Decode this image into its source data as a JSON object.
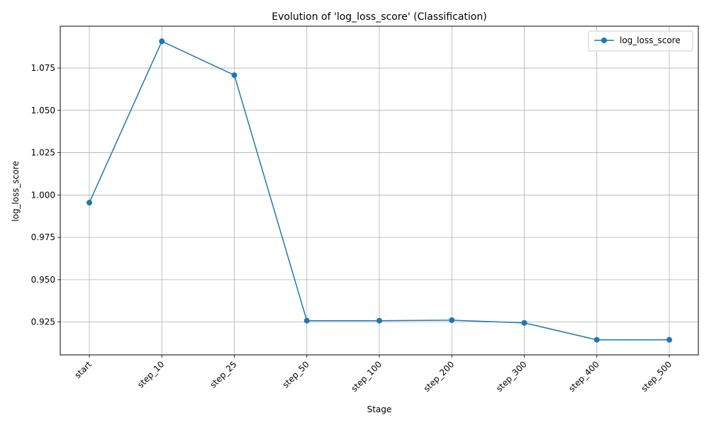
{
  "chart_data": {
    "type": "line",
    "title": "Evolution of 'log_loss_score' (Classification)",
    "xlabel": "Stage",
    "ylabel": "log_loss_score",
    "categories": [
      "start",
      "step_10",
      "step_25",
      "step_50",
      "step_100",
      "step_200",
      "step_300",
      "step_400",
      "step_500"
    ],
    "series": [
      {
        "name": "log_loss_score",
        "values": [
          0.9955,
          1.0908,
          1.0708,
          0.9258,
          0.9258,
          0.9261,
          0.9245,
          0.9145,
          0.9145
        ],
        "color": "#1f77b4",
        "marker": "circle"
      }
    ],
    "yticks": [
      "0.925",
      "0.950",
      "0.975",
      "1.000",
      "1.025",
      "1.050",
      "1.075"
    ],
    "ylim": [
      0.9056,
      1.0997
    ],
    "grid": true,
    "legend_position": "top-right",
    "x_tick_rotation": 45
  }
}
